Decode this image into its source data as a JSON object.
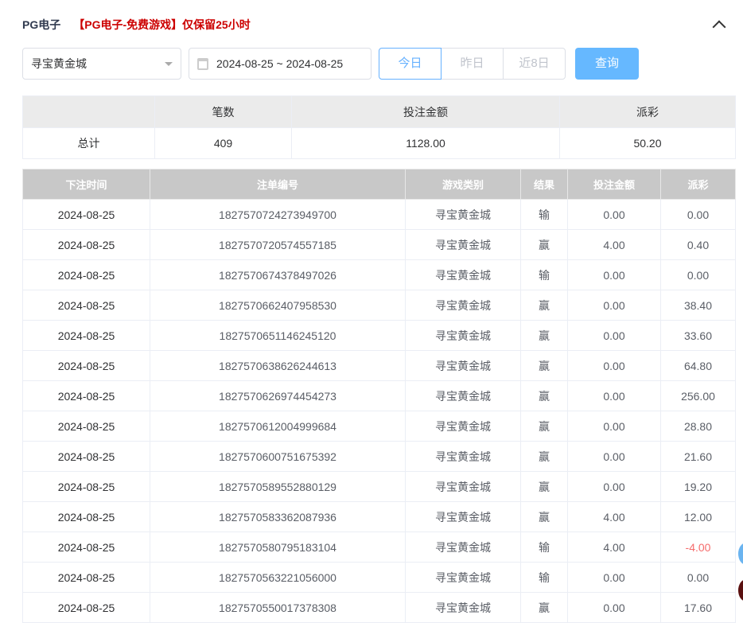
{
  "header": {
    "title": "PG电子",
    "notice": "【PG电子-免费游戏】仅保留25小时"
  },
  "filters": {
    "game": "寻宝黄金城",
    "date_range": "2024-08-25 ~ 2024-08-25",
    "quick": [
      "今日",
      "昨日",
      "近8日"
    ],
    "active_quick": "今日",
    "query": "查询"
  },
  "summary": {
    "headers": [
      "",
      "笔数",
      "投注金额",
      "派彩"
    ],
    "row": [
      "总计",
      "409",
      "1128.00",
      "50.20"
    ]
  },
  "table": {
    "headers": [
      "下注时间",
      "注单编号",
      "游戏类别",
      "结果",
      "投注金额",
      "派彩"
    ],
    "rows": [
      [
        "2024-08-25",
        "1827570724273949700",
        "寻宝黄金城",
        "输",
        "0.00",
        "0.00"
      ],
      [
        "2024-08-25",
        "1827570720574557185",
        "寻宝黄金城",
        "赢",
        "4.00",
        "0.40"
      ],
      [
        "2024-08-25",
        "1827570674378497026",
        "寻宝黄金城",
        "输",
        "0.00",
        "0.00"
      ],
      [
        "2024-08-25",
        "1827570662407958530",
        "寻宝黄金城",
        "赢",
        "0.00",
        "38.40"
      ],
      [
        "2024-08-25",
        "1827570651146245120",
        "寻宝黄金城",
        "赢",
        "0.00",
        "33.60"
      ],
      [
        "2024-08-25",
        "1827570638626244613",
        "寻宝黄金城",
        "赢",
        "0.00",
        "64.80"
      ],
      [
        "2024-08-25",
        "1827570626974454273",
        "寻宝黄金城",
        "赢",
        "0.00",
        "256.00"
      ],
      [
        "2024-08-25",
        "1827570612004999684",
        "寻宝黄金城",
        "赢",
        "0.00",
        "28.80"
      ],
      [
        "2024-08-25",
        "1827570600751675392",
        "寻宝黄金城",
        "赢",
        "0.00",
        "21.60"
      ],
      [
        "2024-08-25",
        "1827570589552880129",
        "寻宝黄金城",
        "赢",
        "0.00",
        "19.20"
      ],
      [
        "2024-08-25",
        "1827570583362087936",
        "寻宝黄金城",
        "赢",
        "4.00",
        "12.00"
      ],
      [
        "2024-08-25",
        "1827570580795183104",
        "寻宝黄金城",
        "输",
        "4.00",
        "-4.00"
      ],
      [
        "2024-08-25",
        "1827570563221056000",
        "寻宝黄金城",
        "输",
        "0.00",
        "0.00"
      ],
      [
        "2024-08-25",
        "1827570550017378308",
        "寻宝黄金城",
        "赢",
        "0.00",
        "17.60"
      ]
    ]
  },
  "colors": {
    "accent": "#66b1ff",
    "negative": "#f56c6c",
    "notice": "#cc0000"
  }
}
